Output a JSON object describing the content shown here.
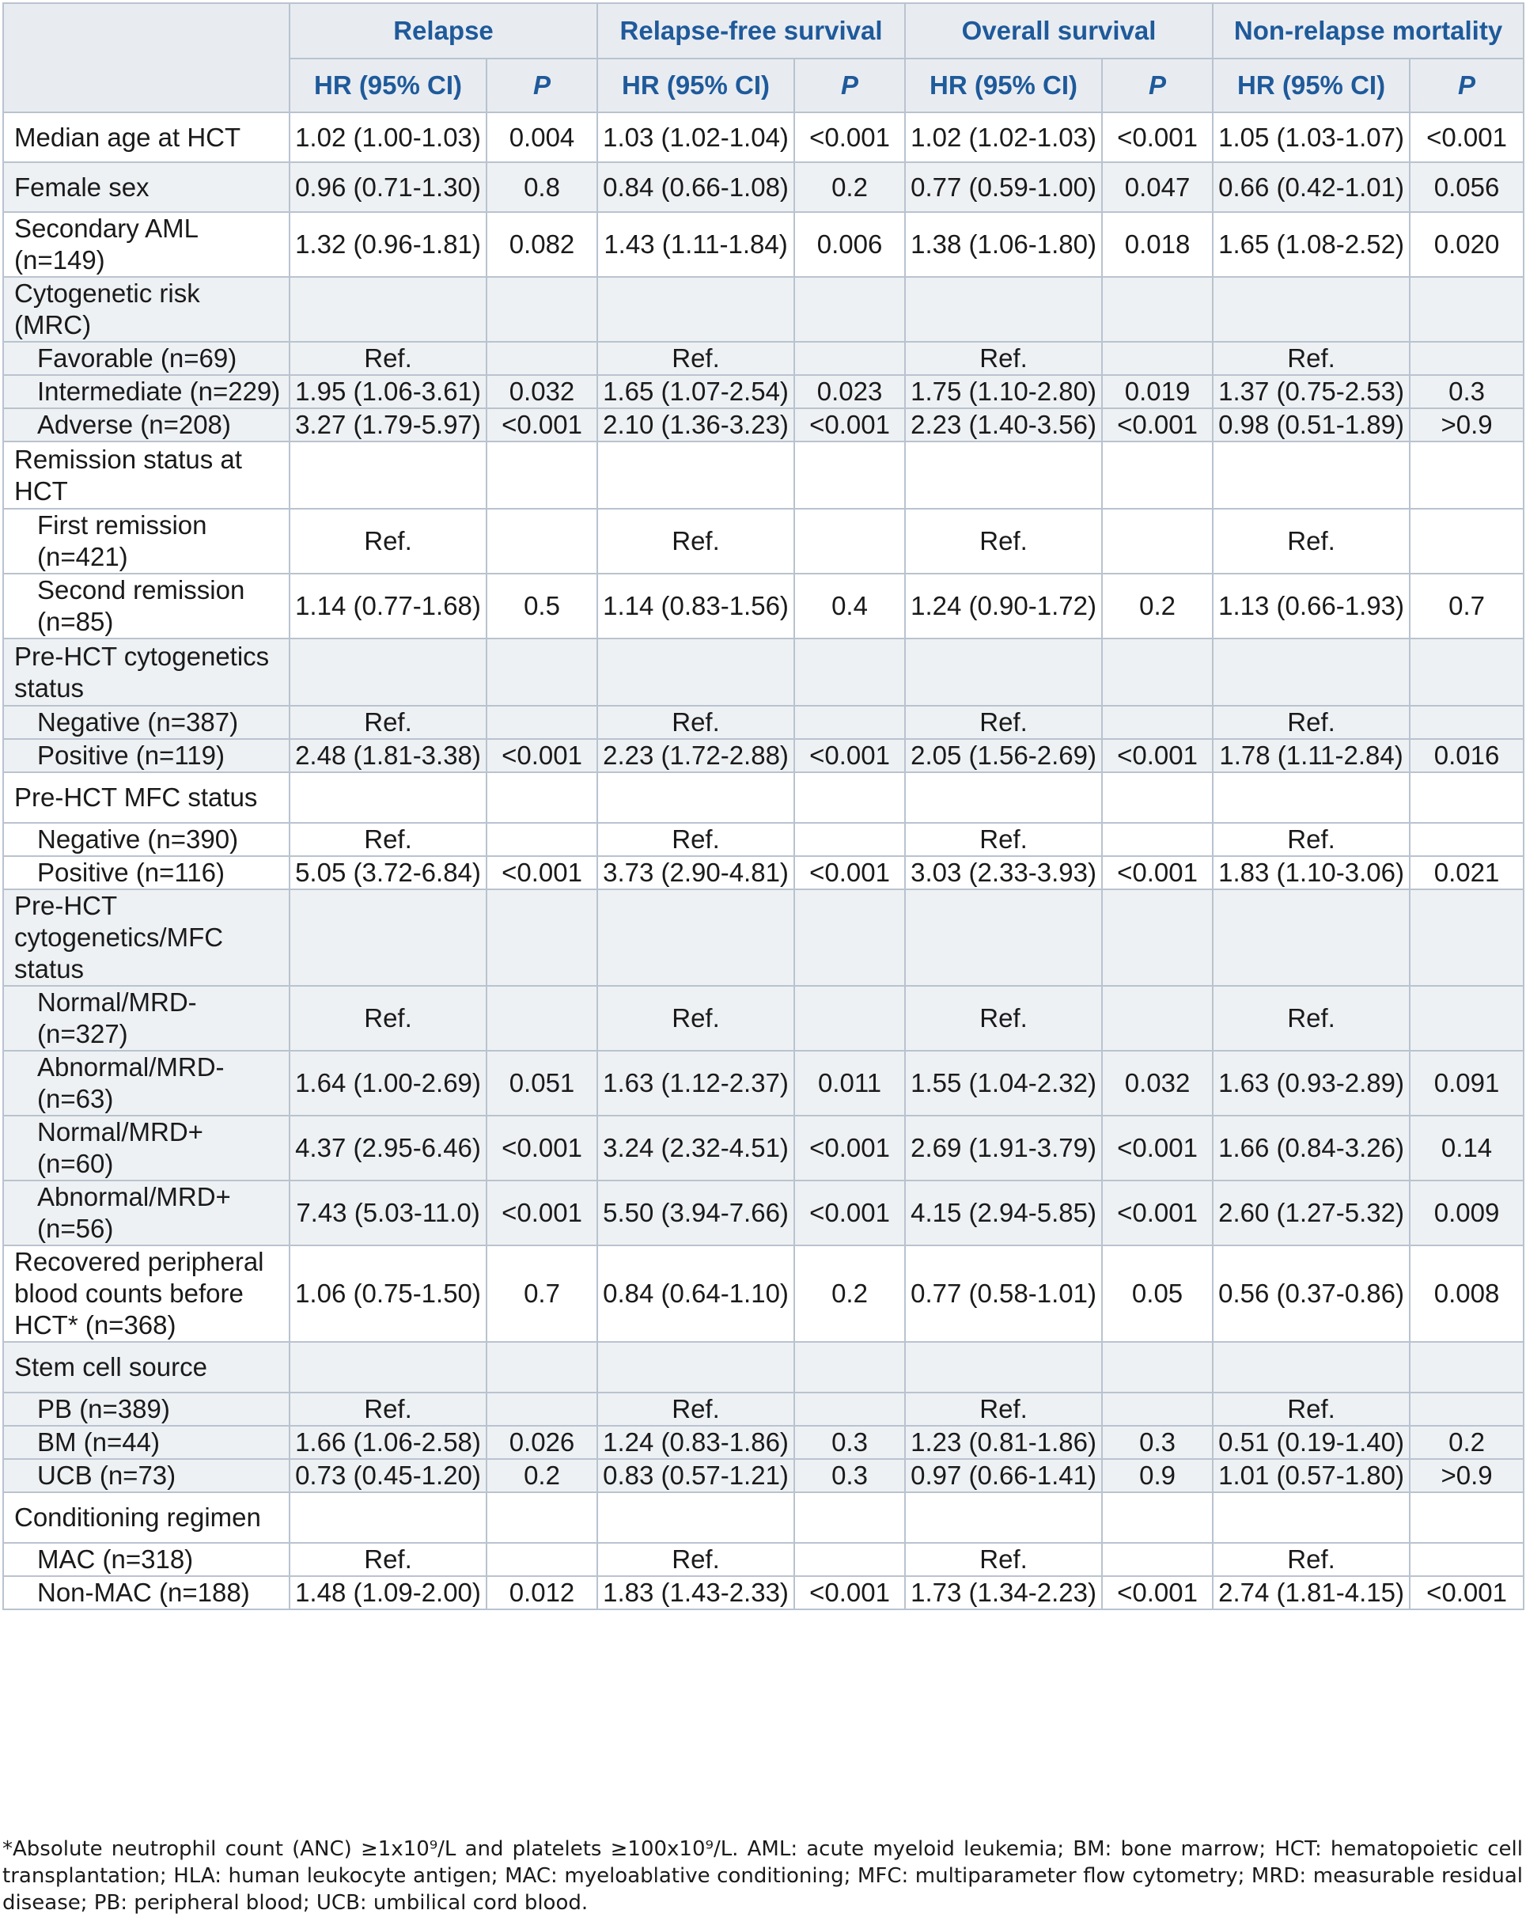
{
  "header": {
    "groups": [
      "Relapse",
      "Relapse-free survival",
      "Overall survival",
      "Non-relapse mortality"
    ],
    "sub": [
      "HR (95% CI)",
      "P"
    ]
  },
  "blocks": [
    {
      "rows": [
        {
          "label": "Median age at HCT",
          "indent": false,
          "cells": [
            "1.02 (1.00-1.03)",
            "0.004",
            "1.03 (1.02-1.04)",
            "<0.001",
            "1.02 (1.02-1.03)",
            "<0.001",
            "1.05 (1.03-1.07)",
            "<0.001"
          ]
        }
      ]
    },
    {
      "rows": [
        {
          "label": "Female sex",
          "indent": false,
          "cells": [
            "0.96 (0.71-1.30)",
            "0.8",
            "0.84 (0.66-1.08)",
            "0.2",
            "0.77 (0.59-1.00)",
            "0.047",
            "0.66 (0.42-1.01)",
            "0.056"
          ]
        }
      ]
    },
    {
      "rows": [
        {
          "label": "Secondary AML (n=149)",
          "indent": false,
          "cells": [
            "1.32 (0.96-1.81)",
            "0.082",
            "1.43 (1.11-1.84)",
            "0.006",
            "1.38 (1.06-1.80)",
            "0.018",
            "1.65 (1.08-2.52)",
            "0.020"
          ]
        }
      ]
    },
    {
      "rows": [
        {
          "label": "Cytogenetic risk (MRC)",
          "indent": false,
          "cells": [
            "",
            "",
            "",
            "",
            "",
            "",
            "",
            ""
          ]
        },
        {
          "label": "Favorable (n=69)",
          "indent": true,
          "cells": [
            "Ref.",
            "",
            "Ref.",
            "",
            "Ref.",
            "",
            "Ref.",
            ""
          ]
        },
        {
          "label": "Intermediate (n=229)",
          "indent": true,
          "cells": [
            "1.95 (1.06-3.61)",
            "0.032",
            "1.65 (1.07-2.54)",
            "0.023",
            "1.75 (1.10-2.80)",
            "0.019",
            "1.37 (0.75-2.53)",
            "0.3"
          ]
        },
        {
          "label": "Adverse (n=208)",
          "indent": true,
          "cells": [
            "3.27 (1.79-5.97)",
            "<0.001",
            "2.10 (1.36-3.23)",
            "<0.001",
            "2.23 (1.40-3.56)",
            "<0.001",
            "0.98 (0.51-1.89)",
            ">0.9"
          ]
        }
      ]
    },
    {
      "rows": [
        {
          "label": "Remission status at HCT",
          "indent": false,
          "cells": [
            "",
            "",
            "",
            "",
            "",
            "",
            "",
            ""
          ]
        },
        {
          "label": "First remission (n=421)",
          "indent": true,
          "cells": [
            "Ref.",
            "",
            "Ref.",
            "",
            "Ref.",
            "",
            "Ref.",
            ""
          ]
        },
        {
          "label": "Second remission (n=85)",
          "indent": true,
          "cells": [
            "1.14 (0.77-1.68)",
            "0.5",
            "1.14 (0.83-1.56)",
            "0.4",
            "1.24 (0.90-1.72)",
            "0.2",
            "1.13 (0.66-1.93)",
            "0.7"
          ]
        }
      ]
    },
    {
      "rows": [
        {
          "label": "Pre-HCT cytogenetics status",
          "indent": false,
          "cells": [
            "",
            "",
            "",
            "",
            "",
            "",
            "",
            ""
          ]
        },
        {
          "label": "Negative (n=387)",
          "indent": true,
          "cells": [
            "Ref.",
            "",
            "Ref.",
            "",
            "Ref.",
            "",
            "Ref.",
            ""
          ]
        },
        {
          "label": "Positive (n=119)",
          "indent": true,
          "cells": [
            "2.48 (1.81-3.38)",
            "<0.001",
            "2.23 (1.72-2.88)",
            "<0.001",
            "2.05 (1.56-2.69)",
            "<0.001",
            "1.78 (1.11-2.84)",
            "0.016"
          ]
        }
      ]
    },
    {
      "rows": [
        {
          "label": "Pre-HCT MFC status",
          "indent": false,
          "cells": [
            "",
            "",
            "",
            "",
            "",
            "",
            "",
            ""
          ]
        },
        {
          "label": "Negative (n=390)",
          "indent": true,
          "cells": [
            "Ref.",
            "",
            "Ref.",
            "",
            "Ref.",
            "",
            "Ref.",
            ""
          ]
        },
        {
          "label": "Positive (n=116)",
          "indent": true,
          "cells": [
            "5.05 (3.72-6.84)",
            "<0.001",
            "3.73 (2.90-4.81)",
            "<0.001",
            "3.03 (2.33-3.93)",
            "<0.001",
            "1.83 (1.10-3.06)",
            "0.021"
          ]
        }
      ]
    },
    {
      "rows": [
        {
          "label": "Pre-HCT cytogenetics/MFC status",
          "indent": false,
          "cells": [
            "",
            "",
            "",
            "",
            "",
            "",
            "",
            ""
          ]
        },
        {
          "label": "Normal/MRD- (n=327)",
          "indent": true,
          "cells": [
            "Ref.",
            "",
            "Ref.",
            "",
            "Ref.",
            "",
            "Ref.",
            ""
          ]
        },
        {
          "label": "Abnormal/MRD- (n=63)",
          "indent": true,
          "cells": [
            "1.64 (1.00-2.69)",
            "0.051",
            "1.63 (1.12-2.37)",
            "0.011",
            "1.55 (1.04-2.32)",
            "0.032",
            "1.63 (0.93-2.89)",
            "0.091"
          ]
        },
        {
          "label": "Normal/MRD+ (n=60)",
          "indent": true,
          "cells": [
            "4.37 (2.95-6.46)",
            "<0.001",
            "3.24 (2.32-4.51)",
            "<0.001",
            "2.69 (1.91-3.79)",
            "<0.001",
            "1.66 (0.84-3.26)",
            "0.14"
          ]
        },
        {
          "label": "Abnormal/MRD+ (n=56)",
          "indent": true,
          "cells": [
            "7.43 (5.03-11.0)",
            "<0.001",
            "5.50 (3.94-7.66)",
            "<0.001",
            "4.15 (2.94-5.85)",
            "<0.001",
            "2.60 (1.27-5.32)",
            "0.009"
          ]
        }
      ]
    },
    {
      "rows": [
        {
          "label": "Recovered peripheral blood counts before HCT* (n=368)",
          "indent": false,
          "cells": [
            "1.06 (0.75-1.50)",
            "0.7",
            "0.84 (0.64-1.10)",
            "0.2",
            "0.77 (0.58-1.01)",
            "0.05",
            "0.56 (0.37-0.86)",
            "0.008"
          ]
        }
      ]
    },
    {
      "rows": [
        {
          "label": "Stem cell source",
          "indent": false,
          "cells": [
            "",
            "",
            "",
            "",
            "",
            "",
            "",
            ""
          ]
        },
        {
          "label": "PB (n=389)",
          "indent": true,
          "cells": [
            "Ref.",
            "",
            "Ref.",
            "",
            "Ref.",
            "",
            "Ref.",
            ""
          ]
        },
        {
          "label": "BM (n=44)",
          "indent": true,
          "cells": [
            "1.66 (1.06-2.58)",
            "0.026",
            "1.24 (0.83-1.86)",
            "0.3",
            "1.23 (0.81-1.86)",
            "0.3",
            "0.51 (0.19-1.40)",
            "0.2"
          ]
        },
        {
          "label": "UCB (n=73)",
          "indent": true,
          "cells": [
            "0.73 (0.45-1.20)",
            "0.2",
            "0.83 (0.57-1.21)",
            "0.3",
            "0.97 (0.66-1.41)",
            "0.9",
            "1.01 (0.57-1.80)",
            ">0.9"
          ]
        }
      ]
    },
    {
      "rows": [
        {
          "label": "Conditioning regimen",
          "indent": false,
          "cells": [
            "",
            "",
            "",
            "",
            "",
            "",
            "",
            ""
          ]
        },
        {
          "label": "MAC (n=318)",
          "indent": true,
          "cells": [
            "Ref.",
            "",
            "Ref.",
            "",
            "Ref.",
            "",
            "Ref.",
            ""
          ]
        },
        {
          "label": "Non-MAC (n=188)",
          "indent": true,
          "cells": [
            "1.48 (1.09-2.00)",
            "0.012",
            "1.83 (1.43-2.33)",
            "<0.001",
            "1.73 (1.34-2.23)",
            "<0.001",
            "2.74 (1.81-4.15)",
            "<0.001"
          ]
        }
      ]
    }
  ],
  "footnote": "*Absolute neutrophil count (ANC) ≥1x10⁹/L and platelets ≥100x10⁹/L. AML: acute myeloid leukemia; BM: bone marrow; HCT: hematopoietic cell transplantation; HLA: human leukocyte antigen; MAC: myeloablative conditioning; MFC: multiparameter flow cytometry; MRD: measurable residual disease; PB: peripheral blood; UCB: umbilical cord blood."
}
